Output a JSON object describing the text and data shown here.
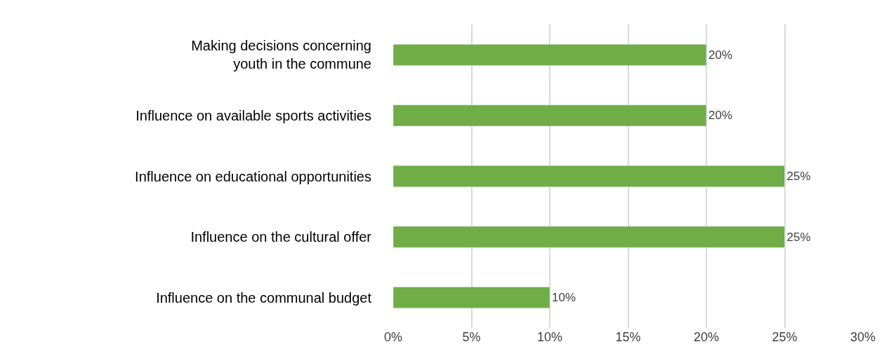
{
  "chart_data": {
    "type": "bar",
    "orientation": "horizontal",
    "categories": [
      "Making decisions concerning\nyouth in the commune",
      "Influence on available sports activities",
      "Influence on educational opportunities",
      "Influence on the cultural offer",
      "Influence on the communal budget"
    ],
    "values": [
      20,
      20,
      25,
      25,
      10
    ],
    "value_labels": [
      "20%",
      "20%",
      "25%",
      "25%",
      "10%"
    ],
    "color": "#70ad47",
    "xlim": [
      0,
      30
    ],
    "xticks": [
      {
        "value": 0,
        "label": "0%"
      },
      {
        "value": 5,
        "label": "5%"
      },
      {
        "value": 10,
        "label": "10%"
      },
      {
        "value": 15,
        "label": "15%"
      },
      {
        "value": 20,
        "label": "20%"
      },
      {
        "value": 25,
        "label": "25%"
      },
      {
        "value": 30,
        "label": "30%"
      }
    ],
    "grid": "x"
  }
}
